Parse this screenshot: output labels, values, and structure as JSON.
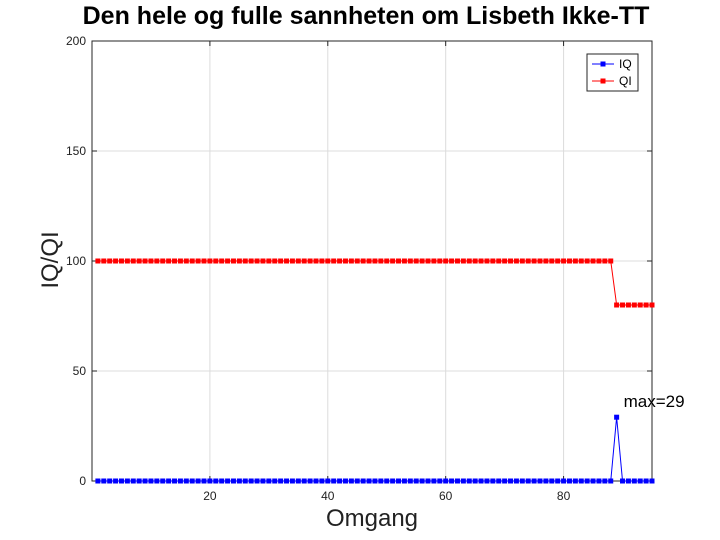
{
  "chart_data": {
    "type": "line",
    "title": "Den hele og fulle sannheten om Lisbeth Ikke-TT",
    "xlabel": "Omgang",
    "ylabel": "IQ/QI",
    "xlim": [
      0,
      95
    ],
    "ylim": [
      0,
      200
    ],
    "xticks": [
      20,
      40,
      60,
      80
    ],
    "yticks": [
      0,
      50,
      100,
      150,
      200
    ],
    "grid": true,
    "legend_position": "top-right",
    "x": "1..95",
    "series": [
      {
        "name": "IQ",
        "color": "#0000ff",
        "marker": "square",
        "values": [
          0,
          0,
          0,
          0,
          0,
          0,
          0,
          0,
          0,
          0,
          0,
          0,
          0,
          0,
          0,
          0,
          0,
          0,
          0,
          0,
          0,
          0,
          0,
          0,
          0,
          0,
          0,
          0,
          0,
          0,
          0,
          0,
          0,
          0,
          0,
          0,
          0,
          0,
          0,
          0,
          0,
          0,
          0,
          0,
          0,
          0,
          0,
          0,
          0,
          0,
          0,
          0,
          0,
          0,
          0,
          0,
          0,
          0,
          0,
          0,
          0,
          0,
          0,
          0,
          0,
          0,
          0,
          0,
          0,
          0,
          0,
          0,
          0,
          0,
          0,
          0,
          0,
          0,
          0,
          0,
          0,
          0,
          0,
          0,
          0,
          0,
          0,
          0,
          29,
          0,
          0,
          0,
          0,
          0,
          0
        ]
      },
      {
        "name": "QI",
        "color": "#ff0000",
        "marker": "square",
        "values": [
          100,
          100,
          100,
          100,
          100,
          100,
          100,
          100,
          100,
          100,
          100,
          100,
          100,
          100,
          100,
          100,
          100,
          100,
          100,
          100,
          100,
          100,
          100,
          100,
          100,
          100,
          100,
          100,
          100,
          100,
          100,
          100,
          100,
          100,
          100,
          100,
          100,
          100,
          100,
          100,
          100,
          100,
          100,
          100,
          100,
          100,
          100,
          100,
          100,
          100,
          100,
          100,
          100,
          100,
          100,
          100,
          100,
          100,
          100,
          100,
          100,
          100,
          100,
          100,
          100,
          100,
          100,
          100,
          100,
          100,
          100,
          100,
          100,
          100,
          100,
          100,
          100,
          100,
          100,
          100,
          100,
          100,
          100,
          100,
          100,
          100,
          100,
          100,
          80,
          80,
          80,
          80,
          80,
          80,
          80
        ]
      }
    ],
    "annotations": [
      {
        "text": "max=29",
        "x": 89,
        "y": 29
      }
    ]
  }
}
